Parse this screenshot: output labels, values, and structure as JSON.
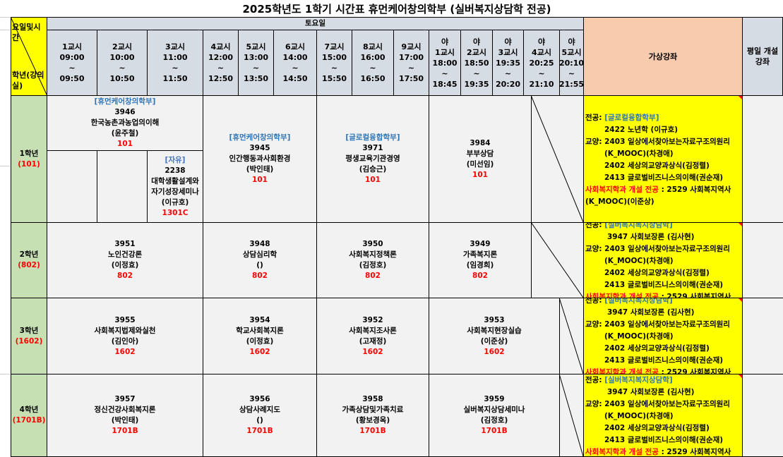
{
  "title": "2025학년도 1학기 시간표 휴먼케어창의학부 (실버복지상담학 전공)",
  "corner": {
    "top": "요일및시간",
    "bottom": "학년(강의실)"
  },
  "day": "토요일",
  "periods": [
    {
      "name": "1교시",
      "start": "09:00",
      "end": "09:50"
    },
    {
      "name": "2교시",
      "start": "10:00",
      "end": "10:50"
    },
    {
      "name": "3교시",
      "start": "11:00",
      "end": "11:50"
    },
    {
      "name": "4교시",
      "start": "12:00",
      "end": "12:50"
    },
    {
      "name": "5교시",
      "start": "13:00",
      "end": "13:50"
    },
    {
      "name": "6교시",
      "start": "14:00",
      "end": "14:50"
    },
    {
      "name": "7교시",
      "start": "15:00",
      "end": "15:50"
    },
    {
      "name": "8교시",
      "start": "16:00",
      "end": "16:50"
    },
    {
      "name": "9교시",
      "start": "17:00",
      "end": "17:50"
    },
    {
      "prefix": "야",
      "name": "1교시",
      "start": "18:00",
      "end": "18:45"
    },
    {
      "prefix": "야",
      "name": "2교시",
      "start": "18:50",
      "end": "19:35"
    },
    {
      "prefix": "야",
      "name": "3교시",
      "start": "19:35",
      "end": "20:20"
    },
    {
      "prefix": "야",
      "name": "4교시",
      "start": "20:25",
      "end": "21:10"
    },
    {
      "prefix": "야",
      "name": "5교시",
      "start": "20:10",
      "end": "21:55"
    }
  ],
  "tilde": "~",
  "virtual_header": "가상강좌",
  "weekday_header": "평일 개설 강좌",
  "grades": [
    {
      "label": "1학년",
      "room": "(101)",
      "courses": [
        {
          "dept": "[휴먼케어창의학부]",
          "code": "3946",
          "name": "한국농촌과농업의이해",
          "prof": "(윤주철)",
          "room": "101"
        },
        {},
        {},
        {
          "dept": "[자유]",
          "code": "2238",
          "name": "대학생활설계와 자기성장세미나",
          "prof": "(이규호)",
          "room": "1301C"
        },
        {
          "dept": "[휴먼케어창의학부]",
          "code": "3945",
          "name": "인간행동과사회환경",
          "prof": "(박인태)",
          "room": "101"
        },
        {
          "dept": "[글로컬융합학부]",
          "code": "3971",
          "name": "평생교육기관경영",
          "prof": "(김승근)",
          "room": "101"
        },
        {
          "code": "3984",
          "name": "부부상담",
          "prof": "(미선임)",
          "room": "101"
        }
      ]
    },
    {
      "label": "2학년",
      "room": "(802)",
      "courses": [
        {
          "code": "3951",
          "name": "노인건강론",
          "prof": "(이정효)",
          "room": "802"
        },
        {
          "code": "3948",
          "name": "상담심리학",
          "prof": "()",
          "room": "802"
        },
        {
          "code": "3950",
          "name": "사회복지정책론",
          "prof": "(김정호)",
          "room": "802"
        },
        {
          "code": "3949",
          "name": "가족복지론",
          "prof": "(임경희)",
          "room": "802"
        }
      ]
    },
    {
      "label": "3학년",
      "room": "(1602)",
      "courses": [
        {
          "code": "3955",
          "name": "사회복지법제와실천",
          "prof": "(김인아)",
          "room": "1602"
        },
        {
          "code": "3954",
          "name": "학교사회복지론",
          "prof": "(이정효)",
          "room": "1602"
        },
        {
          "code": "3952",
          "name": "사회복지조사론",
          "prof": "(고재정)",
          "room": "1602"
        },
        {
          "code": "3953",
          "name": "사회복지현장실습",
          "prof": "(이준상)",
          "room": "1602"
        }
      ]
    },
    {
      "label": "4학년",
      "room": "(1701B)",
      "courses": [
        {
          "code": "3957",
          "name": "정신건강사회복지론",
          "prof": "(박인태)",
          "room": "1701B"
        },
        {
          "code": "3956",
          "name": "상담사례지도",
          "prof": "()",
          "room": "1701B"
        },
        {
          "code": "3958",
          "name": "가족상담및가족치료",
          "prof": "(황보경옥)",
          "room": "1701B"
        },
        {
          "code": "3959",
          "name": "실버복지상담세미나",
          "prof": "(김정호)",
          "room": "1701B"
        }
      ]
    }
  ],
  "virtual": [
    [
      {
        "segs": [
          {
            "t": "전공: "
          },
          {
            "t": "[글로컬융합학부]",
            "c": "blue"
          }
        ]
      },
      {
        "indent": "1",
        "segs": [
          {
            "t": "2422 노년학 (이규호)"
          }
        ]
      },
      {
        "segs": [
          {
            "t": "교양: 2403 일상에서찾아보는자료구조의원리"
          }
        ]
      },
      {
        "indent": "1",
        "segs": [
          {
            "t": "(K_MOOC)(차경애)"
          }
        ]
      },
      {
        "indent": "1",
        "segs": [
          {
            "t": "2402 세상의교양과상식(김정렬)"
          }
        ]
      },
      {
        "indent": "1",
        "segs": [
          {
            "t": "2413 글로벌비즈니스의이해(권순재)"
          }
        ]
      },
      {
        "segs": [
          {
            "t": "사회복지학과 개설 전공",
            "c": "red"
          },
          {
            "t": " : 2529 사회복지역사"
          }
        ]
      },
      {
        "segs": [
          {
            "t": "(K_MOOC)(이준상)"
          }
        ]
      }
    ],
    [
      {
        "segs": [
          {
            "t": "전공: "
          },
          {
            "t": "[실버복지복지상담학]",
            "c": "blue"
          }
        ]
      },
      {
        "indent": "2",
        "segs": [
          {
            "t": "3947 사회보장론 (김사현)"
          }
        ]
      },
      {
        "segs": [
          {
            "t": "교양: 2403 일상에서찾아보는자료구조의원리"
          }
        ]
      },
      {
        "indent": "1",
        "segs": [
          {
            "t": "(K_MOOC)(차경애)"
          }
        ]
      },
      {
        "indent": "1",
        "segs": [
          {
            "t": "2402 세상의교양과상식(김정렬)"
          }
        ]
      },
      {
        "indent": "1",
        "segs": [
          {
            "t": "2413 글로벌비즈니스의이해(권순재)"
          }
        ]
      },
      {
        "segs": [
          {
            "t": "사회복지학과 개설 전공",
            "c": "red"
          },
          {
            "t": " : 2529 사회복지역사"
          }
        ]
      }
    ],
    [
      {
        "segs": [
          {
            "t": "전공: "
          },
          {
            "t": "[실버복지복지상담학]",
            "c": "blue"
          }
        ]
      },
      {
        "indent": "2",
        "segs": [
          {
            "t": "3947 사회보장론 (김사현)"
          }
        ]
      },
      {
        "segs": [
          {
            "t": "교양: 2403 일상에서찾아보는자료구조의원리"
          }
        ]
      },
      {
        "indent": "1",
        "segs": [
          {
            "t": "(K_MOOC)(차경애)"
          }
        ]
      },
      {
        "indent": "1",
        "segs": [
          {
            "t": "2402 세상의교양과상식(김정렬)"
          }
        ]
      },
      {
        "indent": "1",
        "segs": [
          {
            "t": "2413 글로벌비즈니스의이해(권순재)"
          }
        ]
      },
      {
        "segs": [
          {
            "t": "사회복지학과 개설 전공",
            "c": "red"
          },
          {
            "t": " : 2529 사회복지역사"
          }
        ]
      }
    ],
    [
      {
        "segs": [
          {
            "t": "전공: "
          },
          {
            "t": "[실버복지복지상담학]",
            "c": "blue"
          }
        ]
      },
      {
        "indent": "2",
        "segs": [
          {
            "t": "3947 사회보장론 (김사현)"
          }
        ]
      },
      {
        "segs": [
          {
            "t": "교양: 2403 일상에서찾아보는자료구조의원리"
          }
        ]
      },
      {
        "indent": "1",
        "segs": [
          {
            "t": "(K_MOOC)(차경애)"
          }
        ]
      },
      {
        "indent": "1",
        "segs": [
          {
            "t": "2402 세상의교양과상식(김정렬)"
          }
        ]
      },
      {
        "indent": "1",
        "segs": [
          {
            "t": "2413 글로벌비즈니스의이해(권순재)"
          }
        ]
      },
      {
        "segs": [
          {
            "t": "사회복지학과 개설 전공",
            "c": "red"
          },
          {
            "t": " : 2529 사회복지역사"
          }
        ]
      }
    ]
  ],
  "colors": {
    "header": "#d6dce4",
    "corner": "#ffff00",
    "virtual": "#ffff00",
    "virtual_header": "#f8cbad",
    "grade": "#c6e0b4",
    "cell": "#f2f2f2",
    "dept": "#2e75b6",
    "room": "#ff0000"
  }
}
